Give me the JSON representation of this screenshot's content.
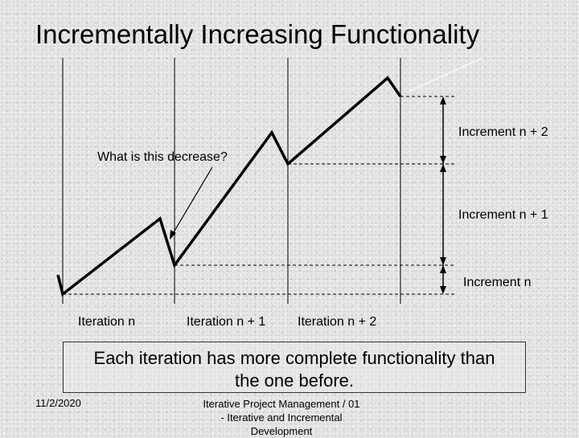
{
  "title": "Incrementally Increasing Functionality",
  "question_label": "What is this decrease?",
  "increments": [
    "Increment n + 2",
    "Increment n + 1",
    "Increment n"
  ],
  "iterations": [
    "Iteration n",
    "Iteration n + 1",
    "Iteration n + 2"
  ],
  "caption_lines": [
    "Each iteration has more complete functionality than",
    "the one before."
  ],
  "footer": {
    "date": "11/2/2020",
    "course_lines": [
      "Iterative Project Management / 01",
      "- Iterative and Incremental",
      "Development"
    ]
  }
}
